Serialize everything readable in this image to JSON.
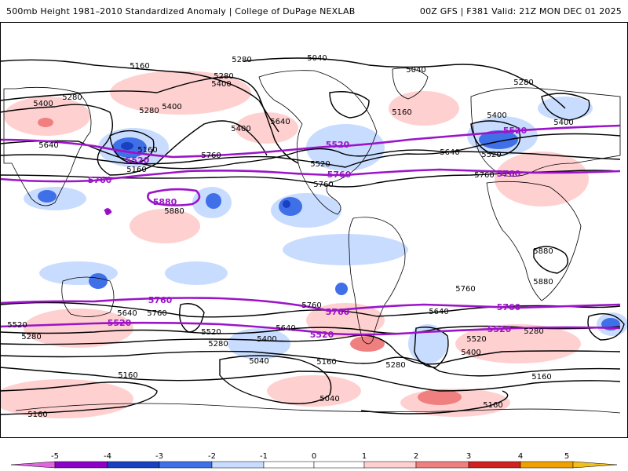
{
  "header": {
    "title": "500mb Height 1981–2010 Standardized Anomaly | College of DuPage NEXLAB",
    "run_info": "00Z GFS | F381 Valid: 21Z MON DEC 01 2025"
  },
  "colors": {
    "contour": "#000000",
    "highlight_contour": "#9b14c8",
    "coast": "#000000",
    "frame": "#000000",
    "scale": [
      "#e066e0",
      "#8c00c8",
      "#1840c0",
      "#4070e8",
      "#c8dcff",
      "#ffffff",
      "#ffd0d0",
      "#f08080",
      "#d02020",
      "#f0a000",
      "#f0c020"
    ]
  },
  "height_labels": {
    "black": [
      {
        "id": "h5160-nw",
        "text": "5160"
      },
      {
        "id": "h5280-nw",
        "text": "5280"
      },
      {
        "id": "h5400-nw",
        "text": "5400"
      },
      {
        "id": "h5040-arc",
        "text": "5040"
      },
      {
        "id": "h5040-ne",
        "text": "5040"
      },
      {
        "id": "h5280-ne",
        "text": "5280"
      },
      {
        "id": "h5400-w",
        "text": "5400"
      },
      {
        "id": "h5280-w",
        "text": "5280"
      },
      {
        "id": "h5640-w",
        "text": "5640"
      },
      {
        "id": "h5280-c1",
        "text": "5280"
      },
      {
        "id": "h5400-c1",
        "text": "5400"
      },
      {
        "id": "h5160-c",
        "text": "5160"
      },
      {
        "id": "h5400-c2",
        "text": "5400"
      },
      {
        "id": "h5640-c",
        "text": "5640"
      },
      {
        "id": "h5160-c2",
        "text": "5160"
      },
      {
        "id": "h5280-c2",
        "text": "5280"
      },
      {
        "id": "h5760-nc",
        "text": "5760"
      },
      {
        "id": "h5520-na",
        "text": "5520"
      },
      {
        "id": "h5760-na",
        "text": "5760"
      },
      {
        "id": "h5160-na",
        "text": "5160"
      },
      {
        "id": "h5400-eu",
        "text": "5400"
      },
      {
        "id": "h5400-eu2",
        "text": "5400"
      },
      {
        "id": "h5640-eu",
        "text": "5640"
      },
      {
        "id": "h5520-eu",
        "text": "5520"
      },
      {
        "id": "h5760-eu",
        "text": "5760"
      },
      {
        "id": "h5880-p",
        "text": "5880"
      },
      {
        "id": "h5880-af",
        "text": "5880"
      },
      {
        "id": "h5880-af2",
        "text": "5880"
      },
      {
        "id": "h5640-sw",
        "text": "5640"
      },
      {
        "id": "h5760-sw",
        "text": "5760"
      },
      {
        "id": "h5520-sw",
        "text": "5520"
      },
      {
        "id": "h5280-sw",
        "text": "5280"
      },
      {
        "id": "h5160-sw",
        "text": "5160"
      },
      {
        "id": "h5160-sw2",
        "text": "5160"
      },
      {
        "id": "h5520-sc",
        "text": "5520"
      },
      {
        "id": "h5280-sc",
        "text": "5280"
      },
      {
        "id": "h5400-sc",
        "text": "5400"
      },
      {
        "id": "h5040-sc",
        "text": "5040"
      },
      {
        "id": "h5160-sc",
        "text": "5160"
      },
      {
        "id": "h5760-sc",
        "text": "5760"
      },
      {
        "id": "h5640-sc",
        "text": "5640"
      },
      {
        "id": "h5040-s",
        "text": "5040"
      },
      {
        "id": "h5280-sa",
        "text": "5280"
      },
      {
        "id": "h5640-sa",
        "text": "5640"
      },
      {
        "id": "h5760-sa",
        "text": "5760"
      },
      {
        "id": "h5520-sa",
        "text": "5520"
      },
      {
        "id": "h5400-sa",
        "text": "5400"
      },
      {
        "id": "h5280-se",
        "text": "5280"
      },
      {
        "id": "h5160-se",
        "text": "5160"
      },
      {
        "id": "h5160-se2",
        "text": "5160"
      }
    ],
    "purple": [
      {
        "id": "p5520-nw",
        "text": "5520"
      },
      {
        "id": "p5760-nw",
        "text": "5760"
      },
      {
        "id": "p5880",
        "text": "5880"
      },
      {
        "id": "p5520-na",
        "text": "5520"
      },
      {
        "id": "p5760-na",
        "text": "5760"
      },
      {
        "id": "p5520-eu",
        "text": "5520"
      },
      {
        "id": "p5760-eu",
        "text": "5760"
      },
      {
        "id": "p5760-sw",
        "text": "5760"
      },
      {
        "id": "p5520-sw",
        "text": "5520"
      },
      {
        "id": "p5760-sc",
        "text": "5760"
      },
      {
        "id": "p5520-sc",
        "text": "5520"
      },
      {
        "id": "p5760-se",
        "text": "5760"
      },
      {
        "id": "p5520-se",
        "text": "5520"
      }
    ]
  },
  "colorbar": {
    "ticks": [
      "-5",
      "-4",
      "-3",
      "-2",
      "-1",
      "0",
      "1",
      "2",
      "3",
      "4",
      "5"
    ]
  }
}
